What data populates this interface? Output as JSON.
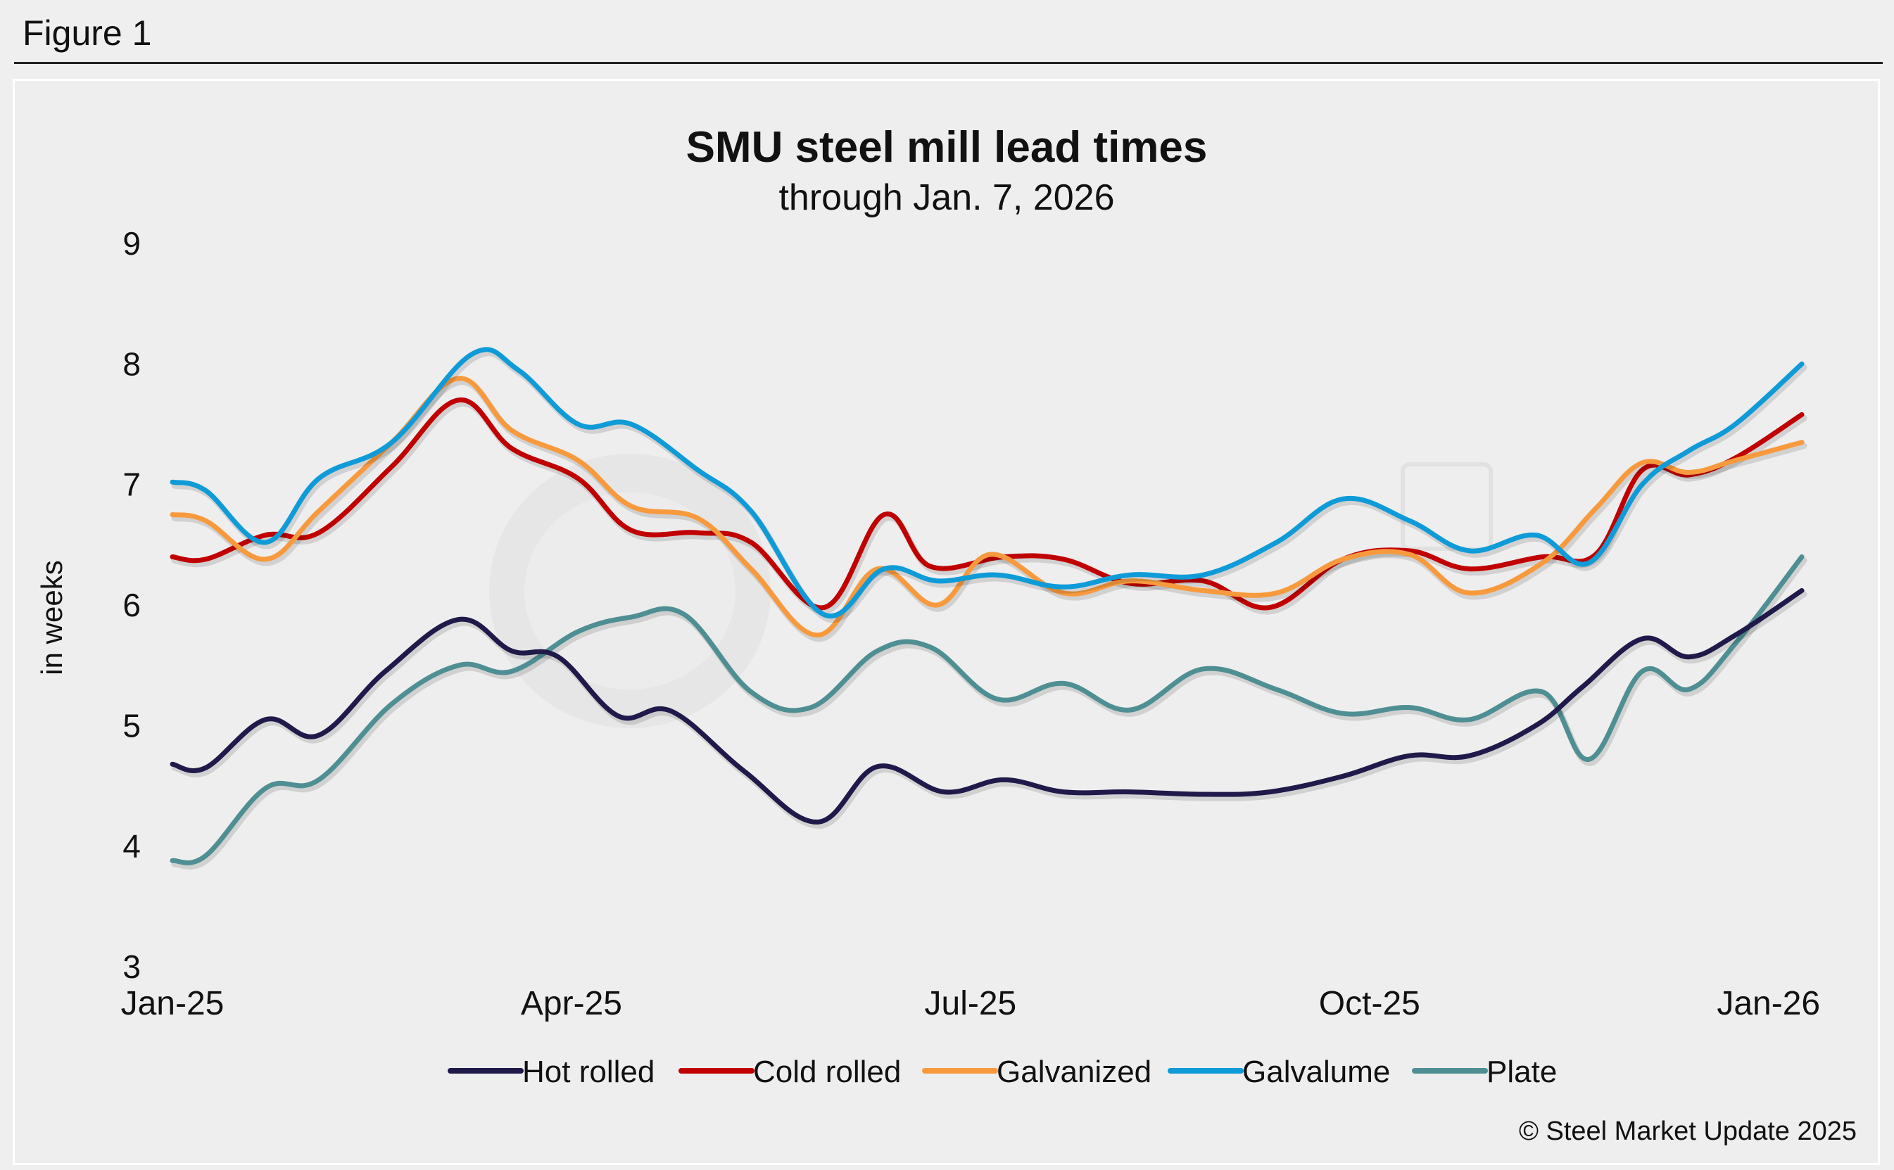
{
  "figure_label": "Figure 1",
  "copyright": "© Steel Market Update 2025",
  "chart_data": {
    "type": "line",
    "title": "SMU steel mill lead times",
    "subtitle": "through Jan. 7, 2026",
    "ylabel": "in weeks",
    "xlabel": "",
    "ylim": [
      3,
      9
    ],
    "yticks": [
      3,
      4,
      5,
      6,
      7,
      8,
      9
    ],
    "xlim": [
      0,
      24.5
    ],
    "xticks": [
      {
        "label": "Jan-25",
        "x": 0
      },
      {
        "label": "Apr-25",
        "x": 6
      },
      {
        "label": "Jul-25",
        "x": 12
      },
      {
        "label": "Oct-25",
        "x": 18
      },
      {
        "label": "Jan-26",
        "x": 24
      }
    ],
    "grid": false,
    "legend_position": "bottom",
    "series": [
      {
        "name": "Hot rolled",
        "color": "#1f1a4a",
        "x": [
          0,
          0.5,
          1.4,
          2.2,
          3.2,
          4.3,
          5.1,
          5.8,
          6.7,
          7.5,
          8.6,
          9.7,
          10.6,
          11.6,
          12.5,
          13.4,
          14.4,
          15.5,
          16.5,
          17.6,
          18.6,
          19.5,
          20.5,
          21.2,
          22.1,
          22.8,
          23.5,
          24.5
        ],
        "y": [
          4.68,
          4.65,
          5.05,
          4.92,
          5.45,
          5.88,
          5.62,
          5.57,
          5.08,
          5.12,
          4.62,
          4.2,
          4.66,
          4.45,
          4.55,
          4.45,
          4.45,
          4.43,
          4.45,
          4.58,
          4.75,
          4.75,
          5.0,
          5.32,
          5.72,
          5.57,
          5.75,
          6.12
        ]
      },
      {
        "name": "Cold rolled",
        "color": "#c00000",
        "x": [
          0,
          0.5,
          1.4,
          2.2,
          3.3,
          4.3,
          5.1,
          6.1,
          6.9,
          7.9,
          8.7,
          9.8,
          10.7,
          11.4,
          12.5,
          13.4,
          14.4,
          15.5,
          16.5,
          17.6,
          18.6,
          19.5,
          20.6,
          21.4,
          22.1,
          22.8,
          23.5,
          24.5
        ],
        "y": [
          6.4,
          6.38,
          6.58,
          6.6,
          7.15,
          7.7,
          7.3,
          7.05,
          6.62,
          6.6,
          6.52,
          5.98,
          6.75,
          6.32,
          6.4,
          6.38,
          6.18,
          6.2,
          5.98,
          6.38,
          6.45,
          6.3,
          6.4,
          6.42,
          7.12,
          7.08,
          7.22,
          7.58
        ]
      },
      {
        "name": "Galvanized",
        "color": "#f79a3e",
        "x": [
          0,
          0.5,
          1.4,
          2.2,
          3.3,
          4.3,
          5.1,
          6.1,
          6.9,
          7.9,
          8.7,
          9.7,
          10.6,
          11.5,
          12.3,
          13.4,
          14.4,
          15.5,
          16.6,
          17.6,
          18.6,
          19.5,
          20.6,
          21.4,
          22.1,
          22.8,
          23.5,
          24.5
        ],
        "y": [
          6.75,
          6.7,
          6.38,
          6.78,
          7.35,
          7.88,
          7.45,
          7.2,
          6.82,
          6.72,
          6.3,
          5.75,
          6.3,
          6.0,
          6.42,
          6.1,
          6.2,
          6.12,
          6.1,
          6.38,
          6.42,
          6.1,
          6.35,
          6.8,
          7.18,
          7.1,
          7.2,
          7.35
        ]
      },
      {
        "name": "Galvalume",
        "color": "#0f9bd7",
        "x": [
          0,
          0.5,
          1.4,
          2.2,
          3.3,
          4.5,
          5.2,
          6.1,
          6.9,
          7.9,
          8.7,
          9.8,
          10.7,
          11.5,
          12.4,
          13.4,
          14.4,
          15.5,
          16.6,
          17.6,
          18.6,
          19.5,
          20.5,
          21.3,
          22.1,
          22.8,
          23.5,
          24.5
        ],
        "y": [
          7.02,
          6.95,
          6.52,
          7.05,
          7.35,
          8.08,
          7.95,
          7.5,
          7.5,
          7.12,
          6.78,
          5.92,
          6.3,
          6.2,
          6.25,
          6.15,
          6.25,
          6.25,
          6.52,
          6.88,
          6.7,
          6.45,
          6.58,
          6.35,
          7.0,
          7.28,
          7.5,
          8.0
        ]
      },
      {
        "name": "Plate",
        "color": "#4f8f94",
        "x": [
          0,
          0.5,
          1.4,
          2.2,
          3.3,
          4.3,
          5.1,
          6.1,
          6.9,
          7.7,
          8.7,
          9.6,
          10.6,
          11.4,
          12.4,
          13.4,
          14.4,
          15.5,
          16.6,
          17.6,
          18.6,
          19.5,
          20.6,
          21.3,
          22.1,
          22.8,
          23.5,
          24.5
        ],
        "y": [
          3.88,
          3.92,
          4.48,
          4.55,
          5.18,
          5.5,
          5.45,
          5.78,
          5.9,
          5.92,
          5.28,
          5.15,
          5.62,
          5.65,
          5.22,
          5.35,
          5.13,
          5.47,
          5.3,
          5.1,
          5.15,
          5.05,
          5.28,
          4.72,
          5.45,
          5.3,
          5.68,
          6.4
        ]
      }
    ]
  }
}
